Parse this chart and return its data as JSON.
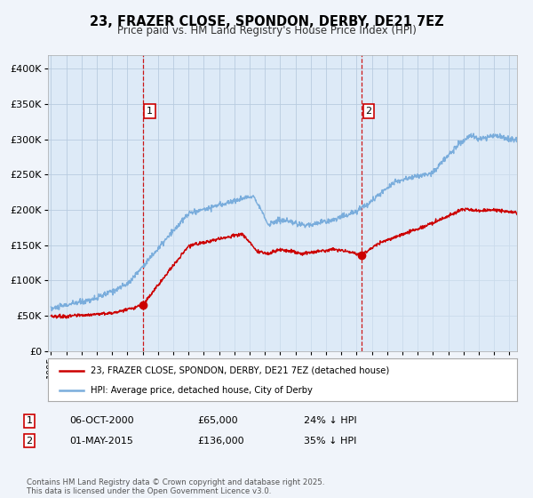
{
  "title": "23, FRAZER CLOSE, SPONDON, DERBY, DE21 7EZ",
  "subtitle": "Price paid vs. HM Land Registry's House Price Index (HPI)",
  "legend_line1": "23, FRAZER CLOSE, SPONDON, DERBY, DE21 7EZ (detached house)",
  "legend_line2": "HPI: Average price, detached house, City of Derby",
  "sale1_date": "06-OCT-2000",
  "sale1_price": "£65,000",
  "sale1_hpi": "24% ↓ HPI",
  "sale1_year": 2001.0,
  "sale1_value": 65000,
  "sale2_date": "01-MAY-2015",
  "sale2_price": "£136,000",
  "sale2_hpi": "35% ↓ HPI",
  "sale2_year": 2015.33,
  "sale2_value": 136000,
  "red_color": "#cc0000",
  "blue_color": "#7aaddc",
  "blue_fill": "#ddeaf7",
  "dashed_color": "#cc0000",
  "background_color": "#f0f4fa",
  "plot_bg": "#ddeaf7",
  "grid_color": "#b8cce0",
  "footer": "Contains HM Land Registry data © Crown copyright and database right 2025.\nThis data is licensed under the Open Government Licence v3.0.",
  "ylim": [
    0,
    420000
  ],
  "xlim_start": 1994.8,
  "xlim_end": 2025.5
}
